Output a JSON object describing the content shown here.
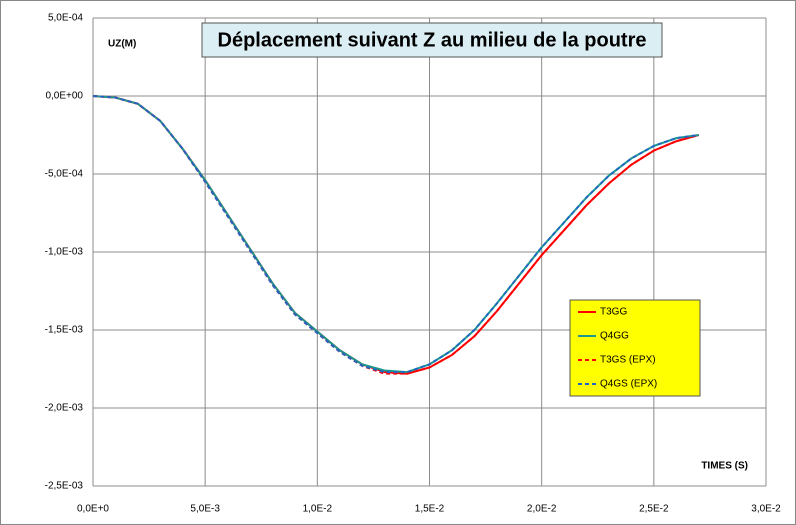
{
  "chart_data": {
    "type": "line",
    "title": "Déplacement suivant Z au milieu de la poutre",
    "y_label": "UZ(M)",
    "x_label": "TIMES (S)",
    "x": [
      0,
      0.001,
      0.002,
      0.003,
      0.004,
      0.005,
      0.006,
      0.007,
      0.008,
      0.009,
      0.01,
      0.011,
      0.012,
      0.013,
      0.014,
      0.015,
      0.016,
      0.017,
      0.018,
      0.019,
      0.02,
      0.021,
      0.022,
      0.023,
      0.024,
      0.025,
      0.026,
      0.027
    ],
    "series": [
      {
        "name": "T3GG",
        "color": "#ff0000",
        "dash": false,
        "values": [
          0,
          -1e-05,
          -5e-05,
          -0.00016,
          -0.00034,
          -0.00054,
          -0.00076,
          -0.00098,
          -0.0012,
          -0.00139,
          -0.00151,
          -0.00163,
          -0.00172,
          -0.00177,
          -0.00178,
          -0.00174,
          -0.00166,
          -0.00154,
          -0.00138,
          -0.0012,
          -0.00102,
          -0.00086,
          -0.0007,
          -0.00056,
          -0.00044,
          -0.00035,
          -0.00029,
          -0.00025
        ]
      },
      {
        "name": "Q4GG",
        "color": "#1a9a8c",
        "dash": false,
        "values": [
          0,
          -1e-05,
          -5e-05,
          -0.00016,
          -0.00034,
          -0.00054,
          -0.00076,
          -0.00098,
          -0.0012,
          -0.00139,
          -0.00151,
          -0.00163,
          -0.00172,
          -0.00176,
          -0.00177,
          -0.00172,
          -0.00163,
          -0.0015,
          -0.00133,
          -0.00115,
          -0.00097,
          -0.00081,
          -0.00065,
          -0.00051,
          -0.0004,
          -0.00032,
          -0.00027,
          -0.00025
        ]
      },
      {
        "name": "T3GS (EPX)",
        "color": "#ff0000",
        "dash": true,
        "values": [
          0,
          -1e-05,
          -5e-05,
          -0.00016,
          -0.00034,
          -0.00055,
          -0.00077,
          -0.00099,
          -0.00121,
          -0.0014,
          -0.00152,
          -0.00164,
          -0.00173,
          -0.00178,
          -0.00178,
          -0.00174,
          -0.00166,
          -0.00154,
          -0.00138,
          -0.0012,
          -0.00102,
          -0.00086,
          -0.0007,
          -0.00056,
          -0.00044,
          -0.00035,
          -0.00029,
          -0.00025
        ]
      },
      {
        "name": "Q4GS (EPX)",
        "color": "#2166c4",
        "dash": true,
        "values": [
          0,
          -1e-05,
          -5e-05,
          -0.00016,
          -0.00034,
          -0.00055,
          -0.00077,
          -0.00099,
          -0.00121,
          -0.0014,
          -0.00152,
          -0.00164,
          -0.00173,
          -0.00177,
          -0.00177,
          -0.00172,
          -0.00163,
          -0.0015,
          -0.00133,
          -0.00115,
          -0.00097,
          -0.00081,
          -0.00065,
          -0.00051,
          -0.0004,
          -0.00032,
          -0.00027,
          -0.00025
        ]
      }
    ],
    "xlim": [
      0,
      0.03
    ],
    "xticks": [
      {
        "value": 0,
        "label": "0,0E+0"
      },
      {
        "value": 0.005,
        "label": "5,0E-3"
      },
      {
        "value": 0.01,
        "label": "1,0E-2"
      },
      {
        "value": 0.015,
        "label": "1,5E-2"
      },
      {
        "value": 0.02,
        "label": "2,0E-2"
      },
      {
        "value": 0.025,
        "label": "2,5E-2"
      },
      {
        "value": 0.03,
        "label": "3,0E-2"
      }
    ],
    "ylim": [
      -0.0025,
      0.0005
    ],
    "yticks": [
      {
        "value": 0.0005,
        "label": "5,0E-04"
      },
      {
        "value": 0,
        "label": "0,0E+00"
      },
      {
        "value": -0.0005,
        "label": "-5,0E-04"
      },
      {
        "value": -0.001,
        "label": "-1,0E-03"
      },
      {
        "value": -0.0015,
        "label": "-1,5E-03"
      },
      {
        "value": -0.002,
        "label": "-2,0E-03"
      },
      {
        "value": -0.0025,
        "label": "-2,5E-03"
      }
    ],
    "grid": true,
    "legend": "lower right"
  }
}
